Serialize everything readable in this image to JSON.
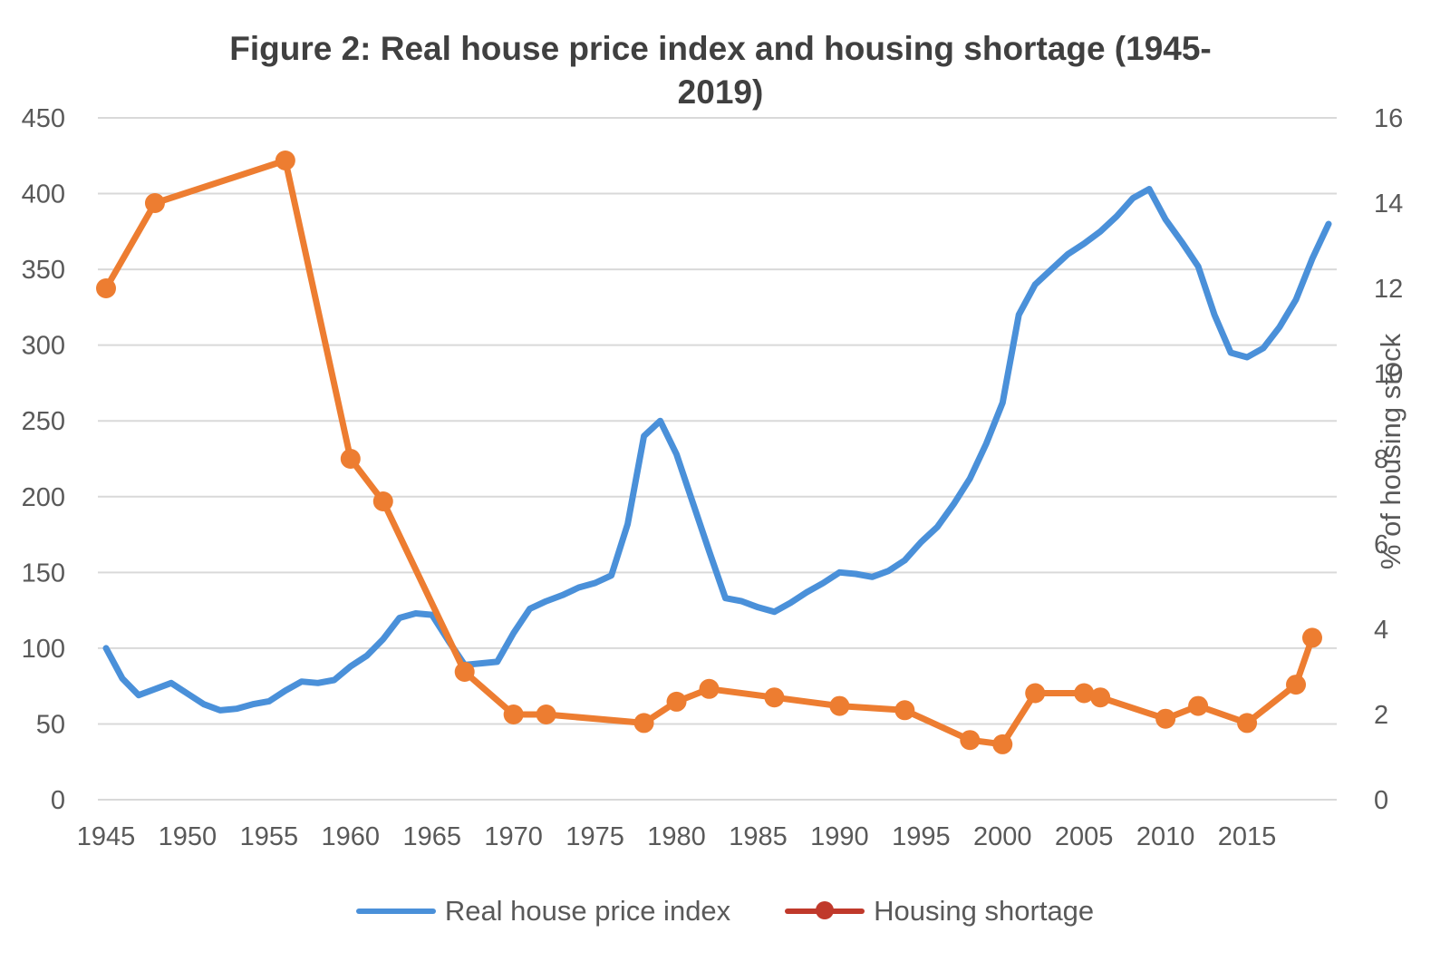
{
  "chart_data": {
    "type": "line",
    "title": "Figure 2: Real house price index and housing shortage (1945-2019)",
    "title_lines": [
      "Figure 2: Real house price index and housing shortage (1945-",
      "2019)"
    ],
    "xlabel": "",
    "ylabel": "",
    "y2label": "% of housing stock",
    "xlim": [
      1945,
      2020
    ],
    "ylim": [
      0,
      450
    ],
    "y2lim": [
      0,
      16
    ],
    "x_ticks": [
      "1945",
      "1950",
      "1955",
      "1960",
      "1965",
      "1970",
      "1975",
      "1980",
      "1985",
      "1990",
      "1995",
      "2000",
      "2005",
      "2010",
      "2015"
    ],
    "y_ticks": [
      "0",
      "50",
      "100",
      "150",
      "200",
      "250",
      "300",
      "350",
      "400",
      "450"
    ],
    "y2_ticks": [
      "0",
      "2",
      "4",
      "6",
      "8",
      "10",
      "12",
      "14",
      "16"
    ],
    "grid": true,
    "legend_position": "bottom",
    "series": [
      {
        "name": "Real house price index",
        "axis": "left",
        "color": "#4a90d9",
        "markers": false,
        "x": [
          1945,
          1946,
          1947,
          1948,
          1949,
          1950,
          1951,
          1952,
          1953,
          1954,
          1955,
          1956,
          1957,
          1958,
          1959,
          1960,
          1961,
          1962,
          1963,
          1964,
          1965,
          1966,
          1967,
          1968,
          1969,
          1970,
          1971,
          1972,
          1973,
          1974,
          1975,
          1976,
          1977,
          1978,
          1979,
          1980,
          1981,
          1982,
          1983,
          1984,
          1985,
          1986,
          1987,
          1988,
          1989,
          1990,
          1991,
          1992,
          1993,
          1994,
          1995,
          1996,
          1997,
          1998,
          1999,
          2000,
          2001,
          2002,
          2003,
          2004,
          2005,
          2006,
          2007,
          2008,
          2009,
          2010,
          2011,
          2012,
          2013,
          2014,
          2015,
          2016,
          2017,
          2018,
          2019,
          2020
        ],
        "values": [
          100,
          80,
          69,
          73,
          77,
          70,
          63,
          59,
          60,
          63,
          65,
          72,
          78,
          77,
          79,
          88,
          95,
          106,
          120,
          123,
          122,
          105,
          89,
          90,
          91,
          110,
          126,
          131,
          135,
          140,
          143,
          148,
          182,
          240,
          250,
          228,
          196,
          164,
          133,
          131,
          127,
          124,
          130,
          137,
          143,
          150,
          149,
          147,
          151,
          158,
          170,
          180,
          195,
          212,
          235,
          262,
          320,
          340,
          350,
          360,
          367,
          375,
          385,
          397,
          403,
          383,
          368,
          352,
          320,
          295,
          292,
          298,
          312,
          330,
          357,
          380
        ]
      },
      {
        "name": "Housing shortage",
        "axis": "right",
        "color": "#ed7d31",
        "legend_color": "#c0392b",
        "markers": true,
        "x": [
          1945,
          1948,
          1956,
          1960,
          1962,
          1967,
          1970,
          1972,
          1978,
          1980,
          1982,
          1986,
          1990,
          1994,
          1998,
          2000,
          2002,
          2005,
          2006,
          2010,
          2012,
          2015,
          2018,
          2019
        ],
        "values": [
          12.0,
          14.0,
          15.0,
          8.0,
          7.0,
          3.0,
          2.0,
          2.0,
          1.8,
          2.3,
          2.6,
          2.4,
          2.2,
          2.1,
          1.4,
          1.3,
          2.5,
          2.5,
          2.4,
          1.9,
          2.2,
          1.8,
          2.7,
          3.8
        ]
      }
    ]
  },
  "legend": {
    "items": [
      {
        "label": "Real house price index"
      },
      {
        "label": "Housing shortage"
      }
    ]
  }
}
